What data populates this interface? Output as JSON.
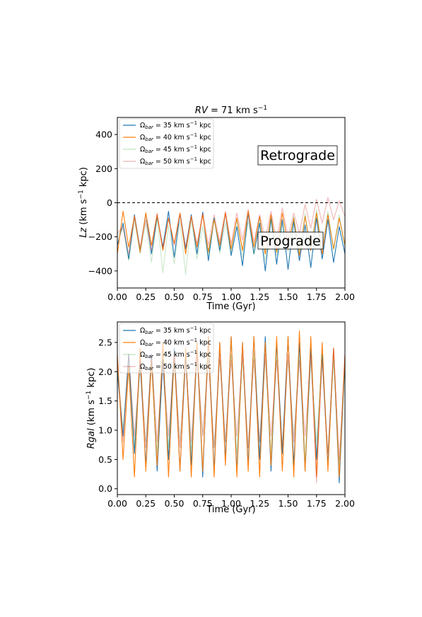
{
  "colors": {
    "s35": "#1f77b4",
    "s40": "#ff7f0e",
    "s45": "#2ca02c",
    "s50": "#d62728"
  },
  "chart_data": [
    {
      "type": "line",
      "title": "RV = 71 km s⁻¹",
      "xlabel": "Time (Gyr)",
      "ylabel": "Lz (km s⁻¹ kpc)",
      "xlim": [
        0.0,
        2.0
      ],
      "ylim": [
        -500,
        500
      ],
      "xticks": [
        "0.00",
        "0.25",
        "0.50",
        "0.75",
        "1.00",
        "1.25",
        "1.50",
        "1.75",
        "2.00"
      ],
      "yticks": [
        "−400",
        "−200",
        "0",
        "200",
        "400"
      ],
      "legend_location": "upper-left",
      "annotations": [
        "Retrograde",
        "Prograde"
      ],
      "reference_line_y": 0,
      "series": [
        {
          "name": "Ωbar = 35 km s⁻¹ kpc",
          "color": "#1f77b4",
          "alpha": 1.0,
          "x": [
            0.0,
            0.05,
            0.1,
            0.15,
            0.2,
            0.25,
            0.3,
            0.35,
            0.4,
            0.45,
            0.5,
            0.55,
            0.6,
            0.65,
            0.7,
            0.75,
            0.8,
            0.85,
            0.9,
            0.95,
            1.0,
            1.05,
            1.1,
            1.15,
            1.2,
            1.25,
            1.3,
            1.35,
            1.4,
            1.45,
            1.5,
            1.55,
            1.6,
            1.65,
            1.7,
            1.75,
            1.8,
            1.85,
            1.9,
            1.95,
            2.0
          ],
          "y": [
            -250,
            -120,
            -330,
            -70,
            -280,
            -60,
            -300,
            -80,
            -260,
            -50,
            -320,
            -60,
            -270,
            -70,
            -300,
            -55,
            -340,
            -90,
            -280,
            -60,
            -310,
            -140,
            -370,
            -60,
            -300,
            -120,
            -400,
            -90,
            -360,
            -100,
            -390,
            -110,
            -340,
            -130,
            -380,
            -90,
            -330,
            -100,
            -350,
            -140,
            -300
          ]
        },
        {
          "name": "Ωbar = 40 km s⁻¹ kpc",
          "color": "#ff7f0e",
          "alpha": 1.0,
          "x": [
            0.0,
            0.05,
            0.1,
            0.15,
            0.2,
            0.25,
            0.3,
            0.35,
            0.4,
            0.45,
            0.5,
            0.55,
            0.6,
            0.65,
            0.7,
            0.75,
            0.8,
            0.85,
            0.9,
            0.95,
            1.0,
            1.05,
            1.1,
            1.15,
            1.2,
            1.25,
            1.3,
            1.35,
            1.4,
            1.45,
            1.5,
            1.55,
            1.6,
            1.65,
            1.7,
            1.75,
            1.8,
            1.85,
            1.9,
            1.95,
            2.0
          ],
          "y": [
            -300,
            -50,
            -260,
            -80,
            -290,
            -60,
            -250,
            -70,
            -280,
            -90,
            -240,
            -60,
            -300,
            -80,
            -260,
            -70,
            -290,
            -100,
            -250,
            -60,
            -270,
            -90,
            -280,
            -50,
            -260,
            -80,
            -300,
            -70,
            -290,
            -60,
            -250,
            -90,
            -310,
            -80,
            -280,
            -60,
            -300,
            -70,
            -270,
            -90,
            -250
          ]
        },
        {
          "name": "Ωbar = 45 km s⁻¹ kpc",
          "color": "#2ca02c",
          "alpha": 0.25,
          "x": [
            0.0,
            0.05,
            0.1,
            0.15,
            0.2,
            0.25,
            0.3,
            0.35,
            0.4,
            0.45,
            0.5,
            0.55,
            0.6,
            0.65,
            0.7,
            0.75,
            0.8,
            0.85,
            0.9,
            0.95,
            1.0,
            1.05,
            1.1,
            1.15,
            1.2,
            1.25,
            1.3,
            1.35,
            1.4,
            1.45,
            1.5,
            1.55,
            1.6,
            1.65,
            1.7,
            1.75,
            1.8,
            1.85,
            1.9,
            1.95,
            2.0
          ],
          "y": [
            -200,
            -150,
            -340,
            -100,
            -300,
            -120,
            -350,
            -90,
            -410,
            -130,
            -360,
            -110,
            -420,
            -100,
            -330,
            -140,
            -310,
            -90,
            -300,
            -120,
            -290,
            -100,
            -320,
            -110,
            -300,
            -90,
            -340,
            -100,
            -310,
            -120,
            -290,
            -80,
            -300,
            -60,
            -280,
            -40,
            -260,
            -50,
            -280,
            -70,
            -260
          ]
        },
        {
          "name": "Ωbar = 50 km s⁻¹ kpc",
          "color": "#d62728",
          "alpha": 0.35,
          "x": [
            0.0,
            0.05,
            0.1,
            0.15,
            0.2,
            0.25,
            0.3,
            0.35,
            0.4,
            0.45,
            0.5,
            0.55,
            0.6,
            0.65,
            0.7,
            0.75,
            0.8,
            0.85,
            0.9,
            0.95,
            1.0,
            1.05,
            1.1,
            1.15,
            1.2,
            1.25,
            1.3,
            1.35,
            1.4,
            1.45,
            1.5,
            1.55,
            1.6,
            1.65,
            1.7,
            1.75,
            1.8,
            1.85,
            1.9,
            1.95,
            2.0
          ],
          "y": [
            -180,
            -140,
            -300,
            -80,
            -260,
            -100,
            -280,
            -60,
            -270,
            -90,
            -250,
            -70,
            -260,
            -80,
            -240,
            -60,
            -250,
            -70,
            -230,
            -50,
            -240,
            -60,
            -220,
            -40,
            -230,
            -70,
            -210,
            -50,
            -220,
            -30,
            -200,
            -60,
            -180,
            -10,
            -150,
            20,
            -120,
            30,
            -100,
            10,
            -80
          ]
        }
      ]
    },
    {
      "type": "line",
      "title": "",
      "xlabel": "Time (Gyr)",
      "ylabel": "Rgal (km s⁻¹ kpc)",
      "xlim": [
        0.0,
        2.0
      ],
      "ylim": [
        -0.1,
        2.85
      ],
      "xticks": [
        "0.00",
        "0.25",
        "0.50",
        "0.75",
        "1.00",
        "1.25",
        "1.50",
        "1.75",
        "2.00"
      ],
      "yticks": [
        "0.0",
        "0.5",
        "1.0",
        "1.5",
        "2.0",
        "2.5"
      ],
      "legend_location": "upper-left",
      "series": [
        {
          "name": "Ωbar = 35 km s⁻¹ kpc",
          "color": "#1f77b4",
          "alpha": 1.0,
          "x": [
            0.0,
            0.05,
            0.1,
            0.15,
            0.2,
            0.25,
            0.3,
            0.35,
            0.4,
            0.45,
            0.5,
            0.55,
            0.6,
            0.65,
            0.7,
            0.75,
            0.8,
            0.85,
            0.9,
            0.95,
            1.0,
            1.05,
            1.1,
            1.15,
            1.2,
            1.25,
            1.3,
            1.35,
            1.4,
            1.45,
            1.5,
            1.55,
            1.6,
            1.65,
            1.7,
            1.75,
            1.8,
            1.85,
            1.9,
            1.95,
            2.0
          ],
          "y": [
            2.0,
            0.9,
            2.3,
            0.6,
            2.2,
            0.4,
            2.3,
            0.3,
            2.2,
            0.5,
            2.4,
            0.3,
            2.3,
            0.4,
            2.5,
            0.2,
            2.6,
            0.3,
            2.5,
            0.5,
            2.6,
            0.3,
            2.5,
            0.4,
            2.6,
            0.5,
            2.6,
            0.3,
            2.5,
            0.6,
            2.6,
            0.4,
            2.5,
            0.3,
            2.4,
            0.5,
            2.3,
            0.4,
            2.4,
            0.1,
            2.2
          ]
        },
        {
          "name": "Ωbar = 40 km s⁻¹ kpc",
          "color": "#ff7f0e",
          "alpha": 1.0,
          "x": [
            0.0,
            0.05,
            0.1,
            0.15,
            0.2,
            0.25,
            0.3,
            0.35,
            0.4,
            0.45,
            0.5,
            0.55,
            0.6,
            0.65,
            0.7,
            0.75,
            0.8,
            0.85,
            0.9,
            0.95,
            1.0,
            1.05,
            1.1,
            1.15,
            1.2,
            1.25,
            1.3,
            1.35,
            1.4,
            1.45,
            1.5,
            1.55,
            1.6,
            1.65,
            1.7,
            1.75,
            1.8,
            1.85,
            1.9,
            1.95,
            2.0
          ],
          "y": [
            2.3,
            0.5,
            2.1,
            0.2,
            2.4,
            0.3,
            2.2,
            0.4,
            2.5,
            0.2,
            2.3,
            0.3,
            2.4,
            0.2,
            2.5,
            0.3,
            2.6,
            0.2,
            2.5,
            0.4,
            2.6,
            0.2,
            2.5,
            0.3,
            2.6,
            0.2,
            2.5,
            0.4,
            2.6,
            0.3,
            2.6,
            0.2,
            2.7,
            0.3,
            2.6,
            0.2,
            2.5,
            0.3,
            2.4,
            0.2,
            2.3
          ]
        },
        {
          "name": "Ωbar = 45 km s⁻¹ kpc",
          "color": "#2ca02c",
          "alpha": 0.25,
          "x": [
            0.0,
            0.05,
            0.1,
            0.15,
            0.2,
            0.25,
            0.3,
            0.35,
            0.4,
            0.45,
            0.5,
            0.55,
            0.6,
            0.65,
            0.7,
            0.75,
            0.8,
            0.85,
            0.9,
            0.95,
            1.0,
            1.05,
            1.1,
            1.15,
            1.2,
            1.25,
            1.3,
            1.35,
            1.4,
            1.45,
            1.5,
            1.55,
            1.6,
            1.65,
            1.7,
            1.75,
            1.8,
            1.85,
            1.9,
            1.95,
            2.0
          ],
          "y": [
            2.1,
            1.0,
            2.2,
            0.7,
            2.1,
            0.8,
            2.2,
            0.6,
            2.3,
            0.7,
            2.2,
            0.8,
            2.3,
            0.6,
            2.2,
            0.9,
            2.3,
            0.7,
            2.2,
            0.8,
            2.3,
            0.6,
            2.2,
            0.7,
            2.3,
            0.8,
            2.2,
            0.6,
            2.3,
            0.7,
            2.2,
            0.9,
            2.3,
            0.5,
            2.2,
            0.8,
            2.3,
            0.6,
            2.2,
            0.4,
            2.1
          ]
        },
        {
          "name": "Ωbar = 50 km s⁻¹ kpc",
          "color": "#d62728",
          "alpha": 0.35,
          "x": [
            0.0,
            0.05,
            0.1,
            0.15,
            0.2,
            0.25,
            0.3,
            0.35,
            0.4,
            0.45,
            0.5,
            0.55,
            0.6,
            0.65,
            0.7,
            0.75,
            0.8,
            0.85,
            0.9,
            0.95,
            1.0,
            1.05,
            1.1,
            1.15,
            1.2,
            1.25,
            1.3,
            1.35,
            1.4,
            1.45,
            1.5,
            1.55,
            1.6,
            1.65,
            1.7,
            1.75,
            1.8,
            1.85,
            1.9,
            1.95,
            2.0
          ],
          "y": [
            2.2,
            0.8,
            2.3,
            0.9,
            2.2,
            0.7,
            2.3,
            0.8,
            2.2,
            0.9,
            2.3,
            0.7,
            2.2,
            0.8,
            2.3,
            0.9,
            2.2,
            0.7,
            2.3,
            0.8,
            2.2,
            0.9,
            2.3,
            0.7,
            2.2,
            0.8,
            2.3,
            0.9,
            2.2,
            0.7,
            2.3,
            0.8,
            2.2,
            0.9,
            2.3,
            0.1,
            2.2,
            0.6,
            2.4,
            0.5,
            2.3
          ]
        }
      ]
    }
  ]
}
